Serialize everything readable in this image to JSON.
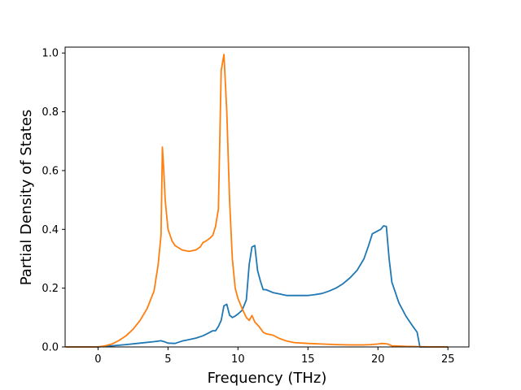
{
  "chart_data": {
    "type": "line",
    "title": "",
    "xlabel": "Frequency (THz)",
    "ylabel": "Partial Density of States",
    "xlim": [
      -2.35,
      26.5
    ],
    "ylim": [
      0.0,
      1.02
    ],
    "xticks": [
      0,
      5,
      10,
      15,
      20,
      25
    ],
    "yticks": [
      0.0,
      0.2,
      0.4,
      0.6,
      0.8,
      1.0
    ],
    "xtick_labels": [
      "0",
      "5",
      "10",
      "15",
      "20",
      "25"
    ],
    "ytick_labels": [
      "0.0",
      "0.2",
      "0.4",
      "0.6",
      "0.8",
      "1.0"
    ],
    "grid": false,
    "legend": "none",
    "series": [
      {
        "color": "#1f77b4",
        "x": [
          -2.3,
          0.0,
          1.0,
          2.0,
          3.0,
          4.0,
          4.5,
          4.8,
          5.0,
          5.5,
          6.0,
          6.5,
          7.0,
          7.5,
          7.8,
          8.0,
          8.2,
          8.4,
          8.6,
          8.8,
          9.0,
          9.2,
          9.4,
          9.6,
          9.8,
          10.0,
          10.3,
          10.6,
          10.8,
          11.0,
          11.2,
          11.4,
          11.6,
          11.8,
          12.0,
          12.5,
          13.0,
          13.5,
          14.0,
          14.5,
          15.0,
          15.5,
          16.0,
          16.5,
          17.0,
          17.5,
          18.0,
          18.5,
          19.0,
          19.3,
          19.6,
          19.8,
          20.0,
          20.2,
          20.4,
          20.6,
          20.8,
          21.0,
          21.5,
          22.0,
          22.5,
          22.8,
          23.0,
          23.5,
          25.0
        ],
        "values": [
          0.0,
          0.0,
          0.004,
          0.008,
          0.013,
          0.018,
          0.021,
          0.017,
          0.013,
          0.012,
          0.02,
          0.025,
          0.03,
          0.038,
          0.045,
          0.05,
          0.055,
          0.055,
          0.07,
          0.09,
          0.14,
          0.145,
          0.108,
          0.1,
          0.105,
          0.112,
          0.125,
          0.16,
          0.28,
          0.34,
          0.345,
          0.26,
          0.225,
          0.195,
          0.195,
          0.185,
          0.18,
          0.175,
          0.175,
          0.175,
          0.175,
          0.178,
          0.182,
          0.19,
          0.2,
          0.215,
          0.235,
          0.26,
          0.3,
          0.34,
          0.385,
          0.39,
          0.395,
          0.4,
          0.412,
          0.41,
          0.3,
          0.22,
          0.15,
          0.105,
          0.07,
          0.05,
          0.0,
          0.0,
          0.0
        ]
      },
      {
        "color": "#ff7f0e",
        "x": [
          -2.3,
          0.0,
          0.5,
          1.0,
          1.5,
          2.0,
          2.5,
          3.0,
          3.5,
          4.0,
          4.3,
          4.5,
          4.6,
          4.7,
          4.8,
          5.0,
          5.3,
          5.5,
          6.0,
          6.5,
          7.0,
          7.3,
          7.5,
          7.7,
          8.0,
          8.2,
          8.4,
          8.6,
          8.8,
          9.0,
          9.2,
          9.4,
          9.6,
          9.8,
          10.0,
          10.3,
          10.6,
          10.8,
          11.0,
          11.2,
          11.5,
          11.8,
          12.0,
          12.5,
          13.0,
          13.5,
          14.0,
          15.0,
          16.0,
          17.0,
          18.0,
          19.0,
          19.5,
          20.0,
          20.3,
          20.7,
          21.0,
          22.0,
          23.0,
          24.0,
          25.0
        ],
        "values": [
          0.0,
          0.0,
          0.004,
          0.01,
          0.022,
          0.038,
          0.06,
          0.09,
          0.13,
          0.19,
          0.28,
          0.38,
          0.68,
          0.6,
          0.5,
          0.4,
          0.36,
          0.345,
          0.33,
          0.325,
          0.33,
          0.34,
          0.355,
          0.36,
          0.37,
          0.38,
          0.41,
          0.47,
          0.94,
          0.995,
          0.8,
          0.5,
          0.3,
          0.2,
          0.165,
          0.13,
          0.1,
          0.09,
          0.107,
          0.085,
          0.07,
          0.05,
          0.045,
          0.04,
          0.028,
          0.02,
          0.015,
          0.012,
          0.01,
          0.008,
          0.007,
          0.007,
          0.008,
          0.01,
          0.012,
          0.01,
          0.004,
          0.002,
          0.001,
          0.0,
          0.0
        ]
      }
    ]
  }
}
